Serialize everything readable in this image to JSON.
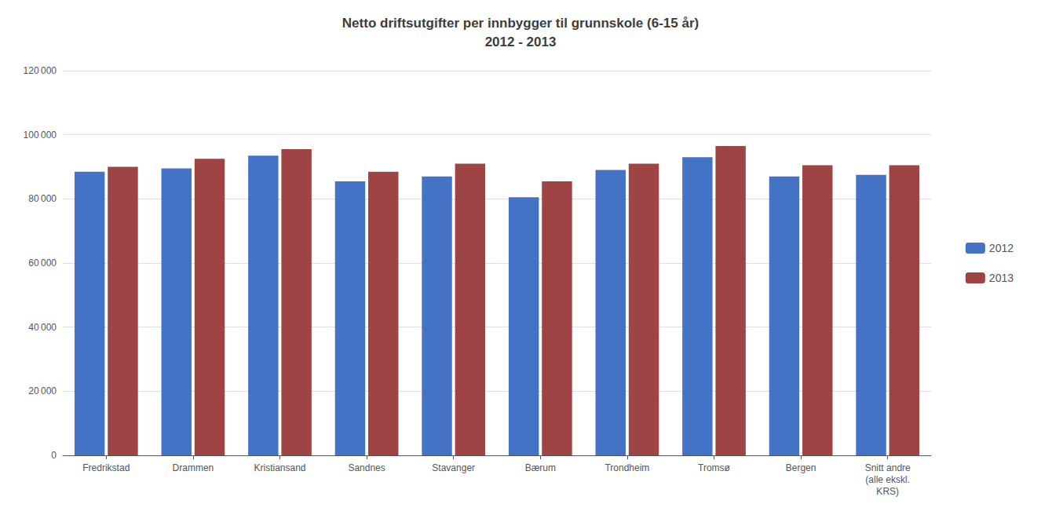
{
  "chart_data": {
    "type": "bar",
    "title": "Netto driftsutgifter per innbygger til grunnskole (6-15 år)\n2012 - 2013",
    "categories": [
      "Fredrikstad",
      "Drammen",
      "Kristiansand",
      "Sandnes",
      "Stavanger",
      "Bærum",
      "Trondheim",
      "Tromsø",
      "Bergen",
      "Snitt andre\n(alle ekskl.\nKRS)"
    ],
    "series": [
      {
        "name": "2012",
        "color": "#4472C4",
        "values": [
          88500,
          89500,
          93500,
          85500,
          87000,
          80500,
          89000,
          93000,
          87000,
          87500
        ]
      },
      {
        "name": "2013",
        "color": "#9E4444",
        "values": [
          90000,
          92500,
          95500,
          88500,
          91000,
          85500,
          91000,
          96500,
          90500,
          90500
        ]
      }
    ],
    "ylim": [
      0,
      120000
    ],
    "yticks": [
      0,
      {
        "value": 20000,
        "label": "20 000"
      },
      {
        "value": 40000,
        "label": "40 000"
      },
      {
        "value": 60000,
        "label": "60 000"
      },
      {
        "value": 80000,
        "label": "80 000"
      },
      {
        "value": 100000,
        "label": "100 000"
      },
      {
        "value": 120000,
        "label": "120 000"
      }
    ],
    "grid": true,
    "legend": "right"
  }
}
